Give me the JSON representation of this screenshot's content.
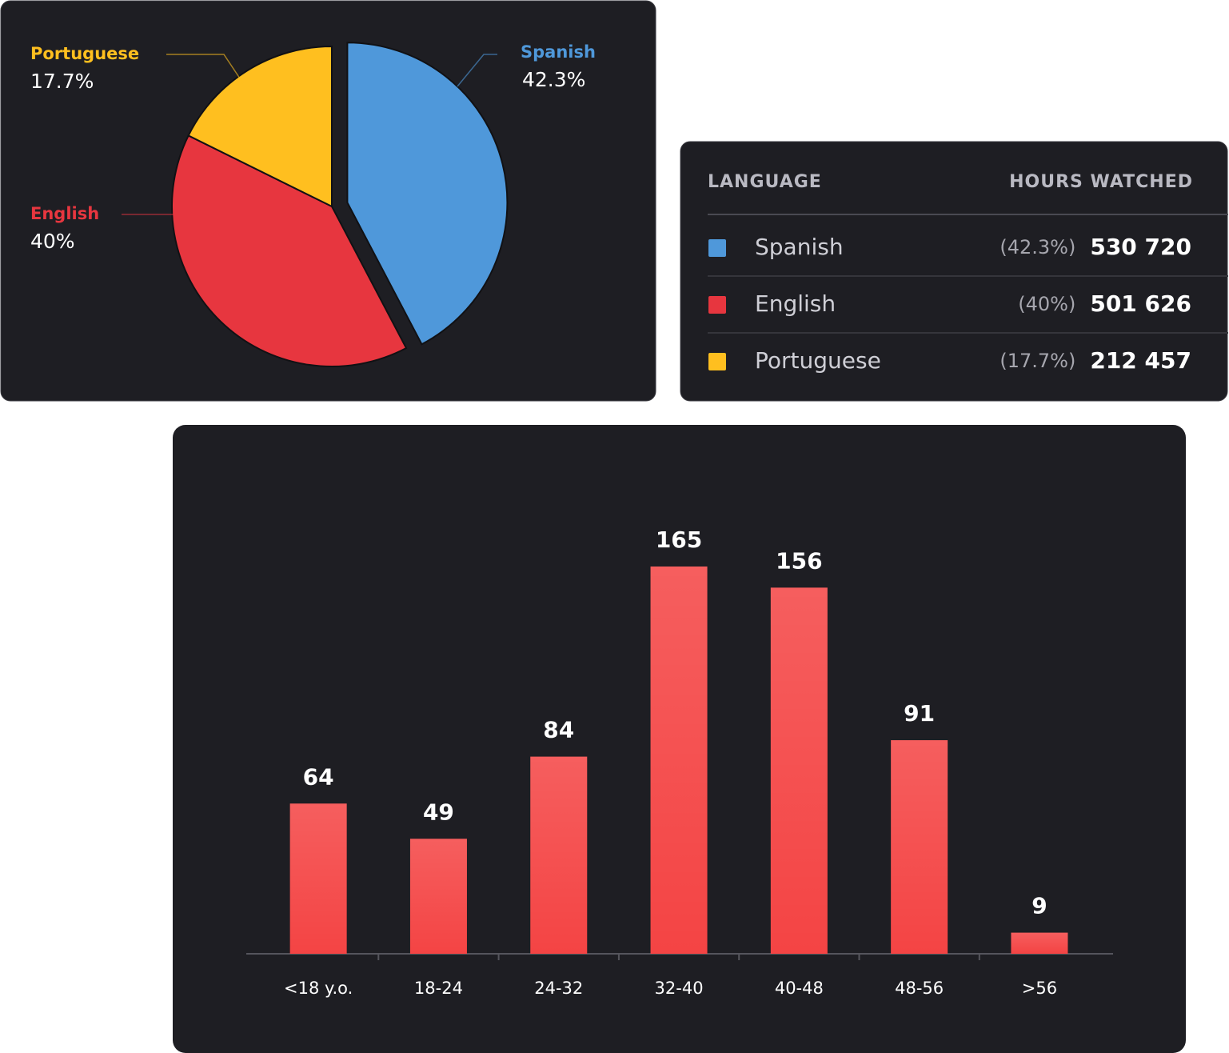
{
  "chart_data": [
    {
      "type": "pie",
      "categories": [
        "Spanish",
        "English",
        "Portuguese"
      ],
      "values": [
        42.3,
        40,
        17.7
      ],
      "value_labels": [
        "42.3%",
        "40%",
        "17.7%"
      ],
      "colors": [
        "#4f98da",
        "#e7363f",
        "#ffbf1f"
      ]
    },
    {
      "type": "bar",
      "categories": [
        "<18 y.o.",
        "18-24",
        "24-32",
        "32-40",
        "40-48",
        "48-56",
        ">56"
      ],
      "values": [
        64,
        49,
        84,
        165,
        156,
        91,
        9
      ],
      "color": "#f44444",
      "ylim": [
        0,
        195
      ],
      "grid": true
    }
  ],
  "table": {
    "header": [
      "LANGUAGE",
      "HOURS WATCHED"
    ],
    "rows": [
      {
        "color": "#4f98da",
        "language": "Spanish",
        "share": "(42.3%)",
        "hours": "530 720"
      },
      {
        "color": "#e7363f",
        "language": "English",
        "share": "(40%)",
        "hours": "501 626"
      },
      {
        "color": "#ffbf1f",
        "language": "Portuguese",
        "share": "(17.7%)",
        "hours": "212 457"
      }
    ]
  }
}
